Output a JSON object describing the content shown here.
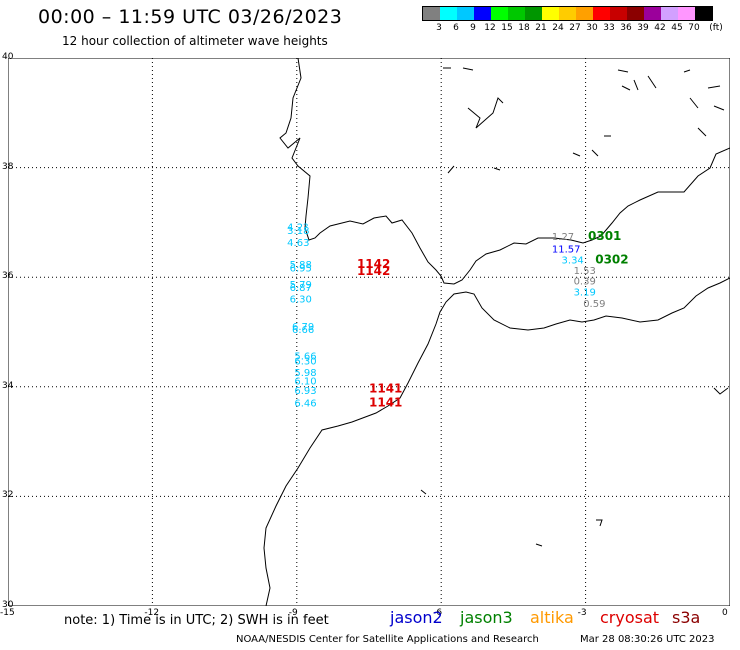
{
  "header": {
    "title": "00:00 – 11:59 UTC 03/26/2023",
    "subtitle": "12 hour collection of altimeter wave heights"
  },
  "legend": {
    "colors": [
      "#808080",
      "#00ffff",
      "#00c8ff",
      "#0000ff",
      "#00ff00",
      "#00c800",
      "#009600",
      "#ffff00",
      "#ffcc00",
      "#ffa000",
      "#ff0000",
      "#c80000",
      "#8b0000",
      "#9b009b",
      "#d2a0ff",
      "#ff96ff",
      "#000000"
    ],
    "labels": [
      "3",
      "6",
      "9",
      "12",
      "15",
      "18",
      "21",
      "24",
      "27",
      "30",
      "33",
      "36",
      "39",
      "42",
      "45",
      "70"
    ],
    "unit": "(ft)"
  },
  "axes": {
    "x_ticks": [
      "-15",
      "-12",
      "-9",
      "-6",
      "-3",
      "0"
    ],
    "y_ticks": [
      "40",
      "38",
      "36",
      "34",
      "32",
      "30"
    ]
  },
  "observations": [
    {
      "label": "4.2?",
      "color": "#00c8ff",
      "lon": -9.2,
      "lat": 36.85
    },
    {
      "label": "3.18",
      "color": "#00c8ff",
      "lon": -9.2,
      "lat": 36.79
    },
    {
      "label": "4.63",
      "color": "#00c8ff",
      "lon": -9.2,
      "lat": 36.57
    },
    {
      "label": "5.88",
      "color": "#00c8ff",
      "lon": -9.15,
      "lat": 36.17
    },
    {
      "label": "6.95",
      "color": "#00c8ff",
      "lon": -9.15,
      "lat": 36.1
    },
    {
      "label": "5.79",
      "color": "#00c8ff",
      "lon": -9.15,
      "lat": 35.8
    },
    {
      "label": "6.87",
      "color": "#00c8ff",
      "lon": -9.15,
      "lat": 35.75
    },
    {
      "label": "6.30",
      "color": "#00c8ff",
      "lon": -9.15,
      "lat": 35.54
    },
    {
      "label": "6.79",
      "color": "#00c8ff",
      "lon": -9.1,
      "lat": 35.04
    },
    {
      "label": "6.66",
      "color": "#00c8ff",
      "lon": -9.1,
      "lat": 34.98
    },
    {
      "label": "5.66",
      "color": "#00c8ff",
      "lon": -9.05,
      "lat": 34.5
    },
    {
      "label": "6.30",
      "color": "#00c8ff",
      "lon": -9.05,
      "lat": 34.41
    },
    {
      "label": "5.98",
      "color": "#00c8ff",
      "lon": -9.05,
      "lat": 34.2
    },
    {
      "label": "6.10",
      "color": "#00c8ff",
      "lon": -9.05,
      "lat": 34.04
    },
    {
      "label": "6.93",
      "color": "#00c8ff",
      "lon": -9.05,
      "lat": 33.87
    },
    {
      "label": "6.46",
      "color": "#00c8ff",
      "lon": -9.05,
      "lat": 33.64
    },
    {
      "label": "1.27",
      "color": "#808080",
      "lon": -3.7,
      "lat": 36.68
    },
    {
      "label": "11.57",
      "color": "#0000ff",
      "lon": -3.7,
      "lat": 36.45
    },
    {
      "label": "3.34",
      "color": "#00c8ff",
      "lon": -3.5,
      "lat": 36.25
    },
    {
      "label": "1.53",
      "color": "#808080",
      "lon": -3.25,
      "lat": 36.06
    },
    {
      "label": "0.39",
      "color": "#808080",
      "lon": -3.25,
      "lat": 35.87
    },
    {
      "label": "3.19",
      "color": "#00c8ff",
      "lon": -3.25,
      "lat": 35.67
    },
    {
      "label": "0.59",
      "color": "#808080",
      "lon": -3.05,
      "lat": 35.46
    }
  ],
  "passes": [
    {
      "label": "1142",
      "color": "#dd0000",
      "lon": -7.75,
      "lat": 36.17
    },
    {
      "label": "1142",
      "color": "#dd0000",
      "lon": -7.75,
      "lat": 36.04
    },
    {
      "label": "0301",
      "color": "#008000",
      "lon": -2.95,
      "lat": 36.68
    },
    {
      "label": "0302",
      "color": "#008000",
      "lon": -2.8,
      "lat": 36.25
    },
    {
      "label": "1141",
      "color": "#dd0000",
      "lon": -7.5,
      "lat": 33.9
    },
    {
      "label": "1141",
      "color": "#dd0000",
      "lon": -7.5,
      "lat": 33.64
    }
  ],
  "footer": {
    "note": "note: 1) Time is in UTC; 2) SWH is in feet",
    "satellites": [
      {
        "name": "jason2",
        "color": "#0000cc"
      },
      {
        "name": "jason3",
        "color": "#008000"
      },
      {
        "name": "altika",
        "color": "#ff9900"
      },
      {
        "name": "cryosat",
        "color": "#dd0000"
      },
      {
        "name": "s3a",
        "color": "#8b0000"
      }
    ],
    "credit": "NOAA/NESDIS Center for Satellite Applications and Research",
    "timestamp": "Mar 28 08:30:26 UTC 2023"
  }
}
